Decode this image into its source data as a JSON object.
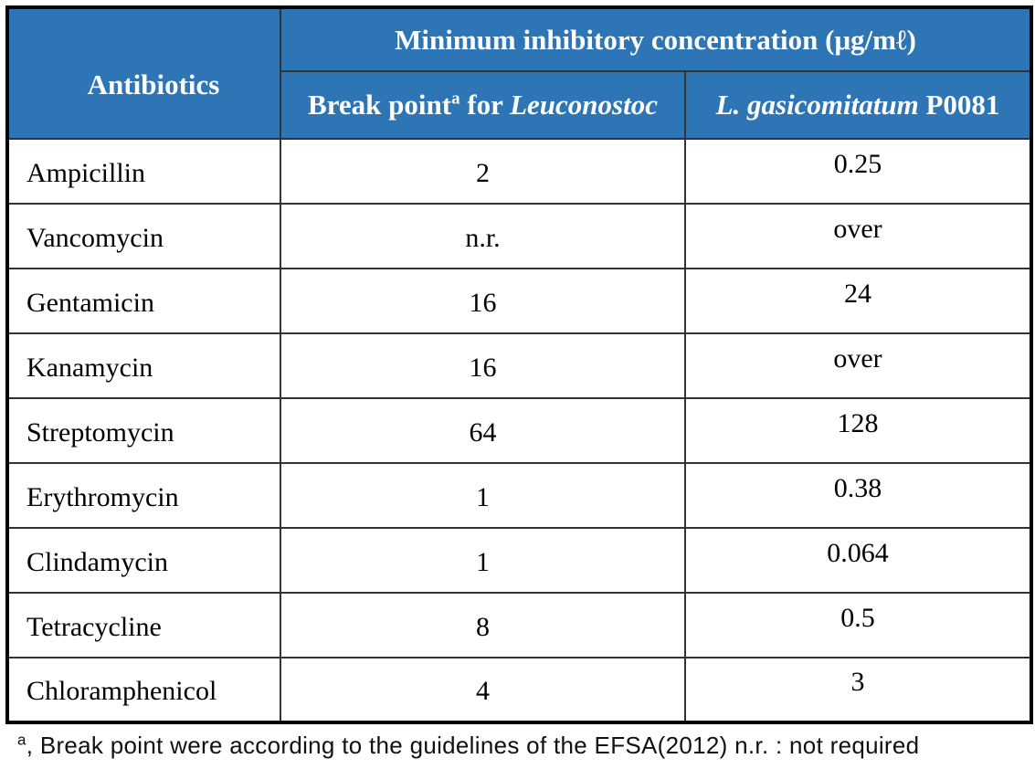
{
  "table": {
    "header": {
      "antibiotics_label": "Antibiotics",
      "mic_title": "Minimum inhibitory concentration (μg/mℓ)",
      "break_point_col": {
        "text": "Break point",
        "sup": "a",
        "mid": " for ",
        "species": "Leuconostoc"
      },
      "strain_col": {
        "species": "L. gasicomitatum",
        "code": " P0081"
      }
    },
    "rows": [
      {
        "antibiotic": "Ampicillin",
        "break_point": "2",
        "mic": "0.25"
      },
      {
        "antibiotic": "Vancomycin",
        "break_point": "n.r.",
        "mic": "over"
      },
      {
        "antibiotic": "Gentamicin",
        "break_point": "16",
        "mic": "24"
      },
      {
        "antibiotic": "Kanamycin",
        "break_point": "16",
        "mic": "over"
      },
      {
        "antibiotic": "Streptomycin",
        "break_point": "64",
        "mic": "128"
      },
      {
        "antibiotic": "Erythromycin",
        "break_point": "1",
        "mic": "0.38"
      },
      {
        "antibiotic": "Clindamycin",
        "break_point": "1",
        "mic": "0.064"
      },
      {
        "antibiotic": "Tetracycline",
        "break_point": "8",
        "mic": "0.5"
      },
      {
        "antibiotic": "Chloramphenicol",
        "break_point": "4",
        "mic": "3"
      }
    ]
  },
  "footnote": {
    "sup": "a",
    "text": ", Break point were according to the guidelines of the EFSA(2012) n.r. : not required"
  },
  "colors": {
    "header_bg": "#2E75B5",
    "header_text": "#FFFFFF",
    "outer_border": "#000000",
    "inner_border": "#333333"
  }
}
